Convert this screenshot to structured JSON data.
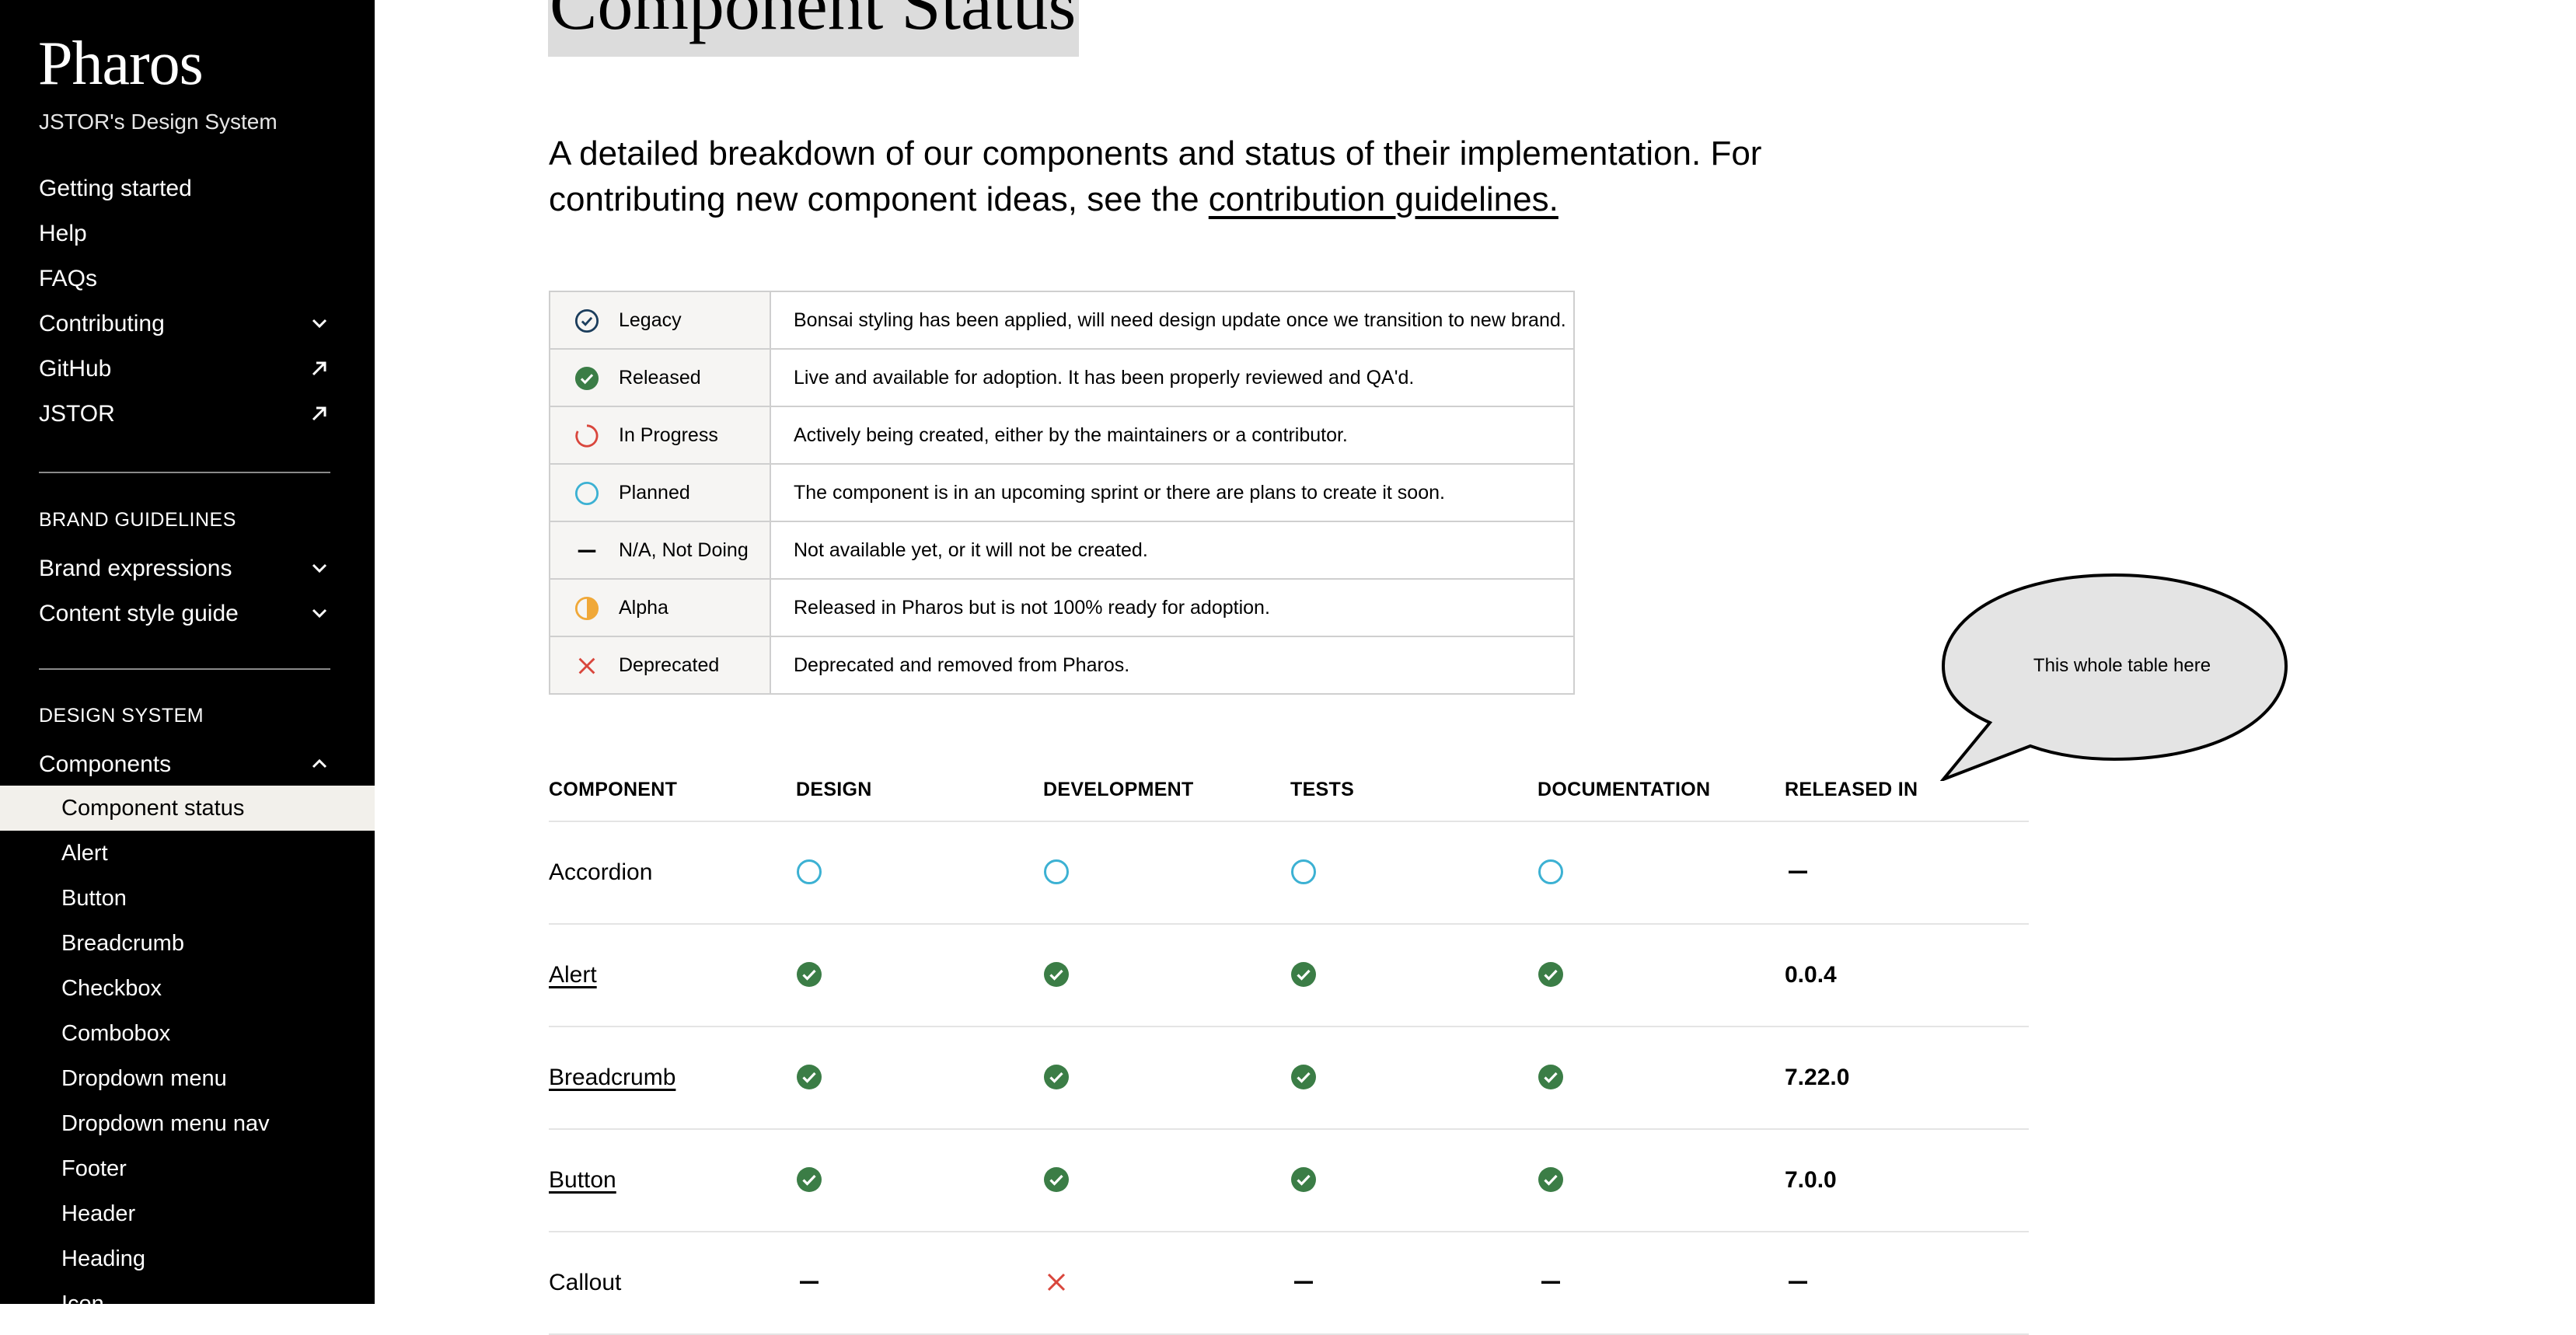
{
  "sidebar": {
    "brand": "Pharos",
    "tagline": "JSTOR's Design System",
    "main_links": [
      {
        "label": "Getting started",
        "icon": ""
      },
      {
        "label": "Help",
        "icon": ""
      },
      {
        "label": "FAQs",
        "icon": ""
      },
      {
        "label": "Contributing",
        "icon": "chevron-down-icon"
      },
      {
        "label": "GitHub",
        "icon": "external-link-icon"
      },
      {
        "label": "JSTOR",
        "icon": "external-link-icon"
      }
    ],
    "brand_section": {
      "heading": "BRAND GUIDELINES",
      "items": [
        {
          "label": "Brand expressions",
          "icon": "chevron-down-icon"
        },
        {
          "label": "Content style guide",
          "icon": "chevron-down-icon"
        }
      ]
    },
    "design_section": {
      "heading": "DESIGN SYSTEM",
      "components_label": "Components",
      "components_icon": "chevron-up-icon",
      "components": [
        "Component status",
        "Alert",
        "Button",
        "Breadcrumb",
        "Checkbox",
        "Combobox",
        "Dropdown menu",
        "Dropdown menu nav",
        "Footer",
        "Header",
        "Heading",
        "Icon"
      ],
      "active_index": 0
    }
  },
  "page": {
    "title": "Component Status",
    "intro_text": "A detailed breakdown of our components and status of their implementation. For contributing new component ideas, see the ",
    "intro_link": "contribution guidelines."
  },
  "legend": [
    {
      "status": "legacy",
      "label": "Legacy",
      "description": "Bonsai styling has been applied, will need design update once we transition to new brand."
    },
    {
      "status": "released",
      "label": "Released",
      "description": "Live and available for adoption. It has been properly reviewed and QA'd."
    },
    {
      "status": "in-progress",
      "label": "In Progress",
      "description": "Actively being created, either by the maintainers or a contributor."
    },
    {
      "status": "planned",
      "label": "Planned",
      "description": "The component is in an upcoming sprint or there are plans to create it soon."
    },
    {
      "status": "na",
      "label": "N/A, Not Doing",
      "description": "Not available yet, or it will not be created."
    },
    {
      "status": "alpha",
      "label": "Alpha",
      "description": "Released in Pharos but is not 100% ready for adoption."
    },
    {
      "status": "deprecated",
      "label": "Deprecated",
      "description": "Deprecated and removed from Pharos."
    }
  ],
  "callout": {
    "text": "This whole table here"
  },
  "status_table": {
    "headers": [
      "COMPONENT",
      "DESIGN",
      "DEVELOPMENT",
      "TESTS",
      "DOCUMENTATION",
      "RELEASED IN"
    ],
    "rows": [
      {
        "component": "Accordion",
        "linked": false,
        "design": "planned",
        "development": "planned",
        "tests": "planned",
        "documentation": "planned",
        "released_in": "",
        "released_status": "na"
      },
      {
        "component": "Alert",
        "linked": true,
        "design": "released",
        "development": "released",
        "tests": "released",
        "documentation": "released",
        "released_in": "0.0.4",
        "released_status": ""
      },
      {
        "component": "Breadcrumb",
        "linked": true,
        "design": "released",
        "development": "released",
        "tests": "released",
        "documentation": "released",
        "released_in": "7.22.0",
        "released_status": ""
      },
      {
        "component": "Button",
        "linked": true,
        "design": "released",
        "development": "released",
        "tests": "released",
        "documentation": "released",
        "released_in": "7.0.0",
        "released_status": ""
      },
      {
        "component": "Callout",
        "linked": false,
        "design": "na",
        "development": "deprecated",
        "tests": "na",
        "documentation": "na",
        "released_in": "",
        "released_status": "na"
      }
    ]
  },
  "colors": {
    "sidebar_bg": "#000000",
    "active_item_bg": "#f2f0eb",
    "released": "#3b7d46",
    "legacy": "#1b3d5c",
    "in_progress": "#d9463c",
    "planned": "#3cb1d3",
    "alpha": "#f0a838",
    "deprecated": "#d9463c"
  }
}
